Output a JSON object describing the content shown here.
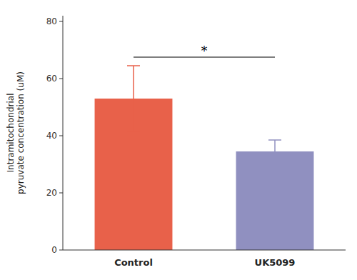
{
  "chart_data": {
    "type": "bar",
    "categories": [
      "Control",
      "UK5099"
    ],
    "values": [
      53.0,
      34.5
    ],
    "errors": [
      11.5,
      4.0
    ],
    "colors": [
      "#E8614A",
      "#9090C0"
    ],
    "ylabel": "Intramitochondrial\npyruvate concentration (uM)",
    "ylim": [
      0,
      82
    ],
    "yticks": [
      0,
      20,
      40,
      60,
      80
    ],
    "grid": false,
    "annotations": [
      {
        "text": "*",
        "y": 67.5,
        "between": [
          "Control",
          "UK5099"
        ]
      }
    ]
  }
}
